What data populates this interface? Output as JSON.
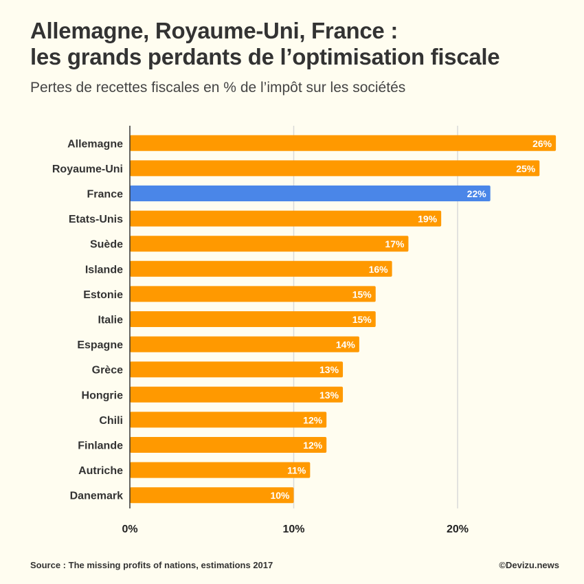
{
  "header": {
    "title_line1": "Allemagne, Royaume-Uni, France :",
    "title_line2": "les grands perdants de l’optimisation fiscale",
    "subtitle": "Pertes de recettes fiscales en % de l’impôt sur les sociétés"
  },
  "footer": {
    "source": "Source : The missing profits of nations, estimations 2017",
    "credit": "©Devizu.news"
  },
  "colors": {
    "bar": "#ff9900",
    "highlight": "#4a86e8",
    "grid": "#d9d9d9",
    "axis": "#333333",
    "background": "#fffdf0"
  },
  "chart_data": {
    "type": "bar",
    "orientation": "horizontal",
    "categories": [
      "Allemagne",
      "Royaume-Uni",
      "France",
      "Etats-Unis",
      "Suède",
      "Islande",
      "Estonie",
      "Italie",
      "Espagne",
      "Grèce",
      "Hongrie",
      "Chili",
      "Finlande",
      "Autriche",
      "Danemark"
    ],
    "values": [
      26,
      25,
      22,
      19,
      17,
      16,
      15,
      15,
      14,
      13,
      13,
      12,
      12,
      11,
      10
    ],
    "value_labels": [
      "26%",
      "25%",
      "22%",
      "19%",
      "17%",
      "16%",
      "15%",
      "15%",
      "14%",
      "13%",
      "13%",
      "12%",
      "12%",
      "11%",
      "10%"
    ],
    "highlight": "France",
    "xlim": [
      0,
      26
    ],
    "xticks": [
      0,
      10,
      20
    ],
    "xtick_labels": [
      "0%",
      "10%",
      "20%"
    ],
    "grid": true
  }
}
